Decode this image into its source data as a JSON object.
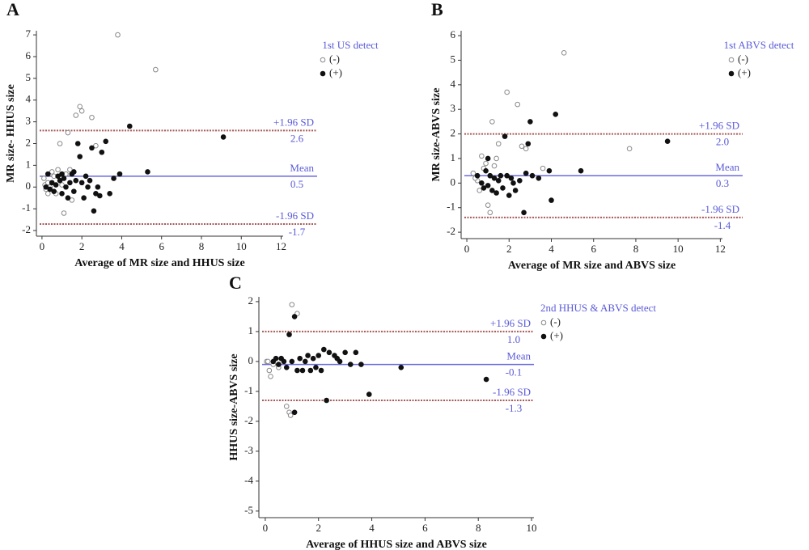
{
  "chart_data": [
    {
      "type": "scatter",
      "title": "A",
      "xlabel": "Average of MR size and HHUS size",
      "ylabel": "MR size- HHUS size",
      "legend_title": "1st US detect",
      "xlim": [
        -0.28,
        12.1
      ],
      "ylim": [
        -2.26,
        7.19
      ],
      "xticks": [
        0,
        2,
        4,
        6,
        8,
        10,
        12
      ],
      "yticks": [
        -2,
        -1,
        0,
        1,
        2,
        3,
        4,
        5,
        6,
        7
      ],
      "series": [
        {
          "name": "(-)",
          "color": "#8a8a8a",
          "marker": "open",
          "x": [
            0.1,
            0.15,
            0.2,
            0.3,
            0.4,
            0.5,
            0.6,
            0.7,
            0.8,
            0.9,
            1.1,
            1.2,
            1.3,
            1.5,
            1.7,
            1.9,
            2.0,
            2.5,
            2.7,
            3.8,
            5.7,
            1.0,
            1.4,
            0.3
          ],
          "values": [
            0.4,
            0.1,
            -0.1,
            0.2,
            0.0,
            0.7,
            0.5,
            -0.3,
            0.8,
            2.0,
            -1.2,
            0.6,
            2.5,
            -0.6,
            3.3,
            3.7,
            3.5,
            3.2,
            1.9,
            7.0,
            5.4,
            0.1,
            0.8,
            -0.3
          ]
        },
        {
          "name": "(+)",
          "color": "#111111",
          "marker": "filled",
          "x": [
            0.3,
            0.4,
            0.5,
            0.6,
            0.7,
            0.8,
            0.9,
            1.0,
            1.1,
            1.2,
            1.3,
            1.4,
            1.5,
            1.6,
            1.7,
            1.8,
            1.9,
            2.0,
            2.1,
            2.2,
            2.3,
            2.4,
            2.5,
            2.6,
            2.7,
            2.8,
            3.0,
            3.2,
            3.4,
            3.6,
            3.9,
            4.4,
            5.3,
            9.1,
            1.6,
            2.9,
            0.2,
            1.0
          ],
          "values": [
            0.6,
            -0.1,
            0.2,
            -0.2,
            0.1,
            0.5,
            0.3,
            -0.3,
            0.4,
            0.0,
            -0.5,
            0.2,
            0.6,
            -0.2,
            0.3,
            2.0,
            1.4,
            0.2,
            -0.5,
            0.5,
            0.0,
            0.3,
            1.8,
            -1.1,
            -0.3,
            0.0,
            1.6,
            2.1,
            -0.3,
            0.4,
            0.6,
            2.8,
            0.7,
            2.3,
            0.7,
            -0.4,
            0.0,
            0.6
          ]
        }
      ],
      "reference_lines": [
        {
          "name": "+1.96 SD",
          "value": 2.6,
          "value_label": "2.6",
          "color": "#a85a5a",
          "dashed": true
        },
        {
          "name": "Mean",
          "value": 0.5,
          "value_label": "0.5",
          "color": "#6a6ae0",
          "dashed": false
        },
        {
          "name": "-1.96 SD",
          "value": -1.7,
          "value_label": "-1.7",
          "color": "#a85a5a",
          "dashed": true
        }
      ]
    },
    {
      "type": "scatter",
      "title": "B",
      "xlabel": "Average of MR size and ABVS size",
      "ylabel": "MR size-ABVS size",
      "legend_title": "1st ABVS detect",
      "xlim": [
        -0.27,
        12.1
      ],
      "ylim": [
        -2.26,
        6.2
      ],
      "xticks": [
        0,
        2,
        4,
        6,
        8,
        10,
        12
      ],
      "yticks": [
        -2,
        -1,
        0,
        1,
        2,
        3,
        4,
        5,
        6
      ],
      "series": [
        {
          "name": "(-)",
          "color": "#8a8a8a",
          "marker": "open",
          "x": [
            0.3,
            0.5,
            0.6,
            0.7,
            0.8,
            0.9,
            1.0,
            1.1,
            1.2,
            1.4,
            1.5,
            1.9,
            2.4,
            2.6,
            2.8,
            3.6,
            4.6,
            7.7,
            0.4,
            1.3
          ],
          "values": [
            0.4,
            0.1,
            -0.3,
            1.1,
            0.6,
            0.8,
            -0.9,
            -1.2,
            2.5,
            1.0,
            1.6,
            3.7,
            3.2,
            1.5,
            1.4,
            0.6,
            5.3,
            1.4,
            0.2,
            0.7
          ]
        },
        {
          "name": "(+)",
          "color": "#111111",
          "marker": "filled",
          "x": [
            0.5,
            0.7,
            0.8,
            0.9,
            1.0,
            1.1,
            1.2,
            1.3,
            1.4,
            1.5,
            1.6,
            1.7,
            1.8,
            1.9,
            2.0,
            2.1,
            2.3,
            2.5,
            2.7,
            2.8,
            2.9,
            3.0,
            3.1,
            3.4,
            3.9,
            4.0,
            4.2,
            5.4,
            9.5,
            2.2,
            1.0
          ],
          "values": [
            0.3,
            0.0,
            -0.2,
            0.5,
            1.0,
            0.3,
            -0.3,
            0.2,
            -0.4,
            0.1,
            0.3,
            -0.2,
            1.9,
            0.3,
            -0.5,
            0.2,
            -0.3,
            0.1,
            -1.2,
            0.4,
            1.6,
            2.5,
            0.3,
            0.2,
            0.5,
            -0.7,
            2.8,
            0.5,
            1.7,
            0.0,
            -0.1
          ]
        }
      ],
      "reference_lines": [
        {
          "name": "+1.96 SD",
          "value": 2,
          "value_label": "2.0",
          "color": "#a85a5a",
          "dashed": true
        },
        {
          "name": "Mean",
          "value": 0.3,
          "value_label": "0.3",
          "color": "#6a6ae0",
          "dashed": false
        },
        {
          "name": "-1.96 SD",
          "value": -1.4,
          "value_label": "-1.4",
          "color": "#a85a5a",
          "dashed": true
        }
      ]
    },
    {
      "type": "scatter",
      "title": "C",
      "xlabel": "Average of HHUS size and ABVS size",
      "ylabel": "HHUS size-ABVS size",
      "legend_title": "2nd HHUS & ABVS detect",
      "xlim": [
        -0.24,
        10.09
      ],
      "ylim": [
        -5.22,
        2.16
      ],
      "xticks": [
        0,
        2,
        4,
        6,
        8,
        10
      ],
      "yticks": [
        -5,
        -4,
        -3,
        -2,
        -1,
        0,
        1,
        2
      ],
      "series": [
        {
          "name": "(-)",
          "color": "#8a8a8a",
          "marker": "open",
          "x": [
            0.05,
            0.1,
            0.15,
            0.2,
            0.3,
            0.5,
            0.8,
            0.9,
            0.95,
            1.0,
            1.2,
            0.6
          ],
          "values": [
            0.0,
            0.0,
            -0.3,
            -0.5,
            -0.1,
            -0.2,
            -1.5,
            -1.7,
            -1.8,
            1.9,
            1.6,
            0.1
          ]
        },
        {
          "name": "(+)",
          "color": "#111111",
          "marker": "filled",
          "x": [
            0.3,
            0.4,
            0.5,
            0.6,
            0.7,
            0.8,
            0.9,
            1.0,
            1.1,
            1.1,
            1.2,
            1.3,
            1.4,
            1.5,
            1.6,
            1.7,
            1.8,
            1.9,
            2.0,
            2.1,
            2.3,
            2.4,
            2.6,
            2.8,
            3.0,
            3.2,
            3.4,
            3.6,
            3.9,
            5.1,
            8.3,
            2.2,
            2.7
          ],
          "values": [
            0.0,
            0.1,
            -0.1,
            0.1,
            0.0,
            -0.2,
            0.9,
            0.0,
            1.5,
            -1.7,
            -0.3,
            0.1,
            -0.3,
            0.0,
            0.2,
            -0.3,
            0.1,
            -0.2,
            0.2,
            -0.3,
            -1.3,
            0.3,
            0.2,
            0.0,
            0.3,
            -0.1,
            0.3,
            -0.1,
            -1.1,
            -0.2,
            -0.6,
            0.4,
            0.1
          ]
        }
      ],
      "reference_lines": [
        {
          "name": "+1.96 SD",
          "value": 1,
          "value_label": "1.0",
          "color": "#a85a5a",
          "dashed": true
        },
        {
          "name": "Mean",
          "value": -0.1,
          "value_label": "-0.1",
          "color": "#6a6ae0",
          "dashed": false
        },
        {
          "name": "-1.96 SD",
          "value": -1.3,
          "value_label": "-1.3",
          "color": "#a85a5a",
          "dashed": true
        }
      ]
    }
  ]
}
